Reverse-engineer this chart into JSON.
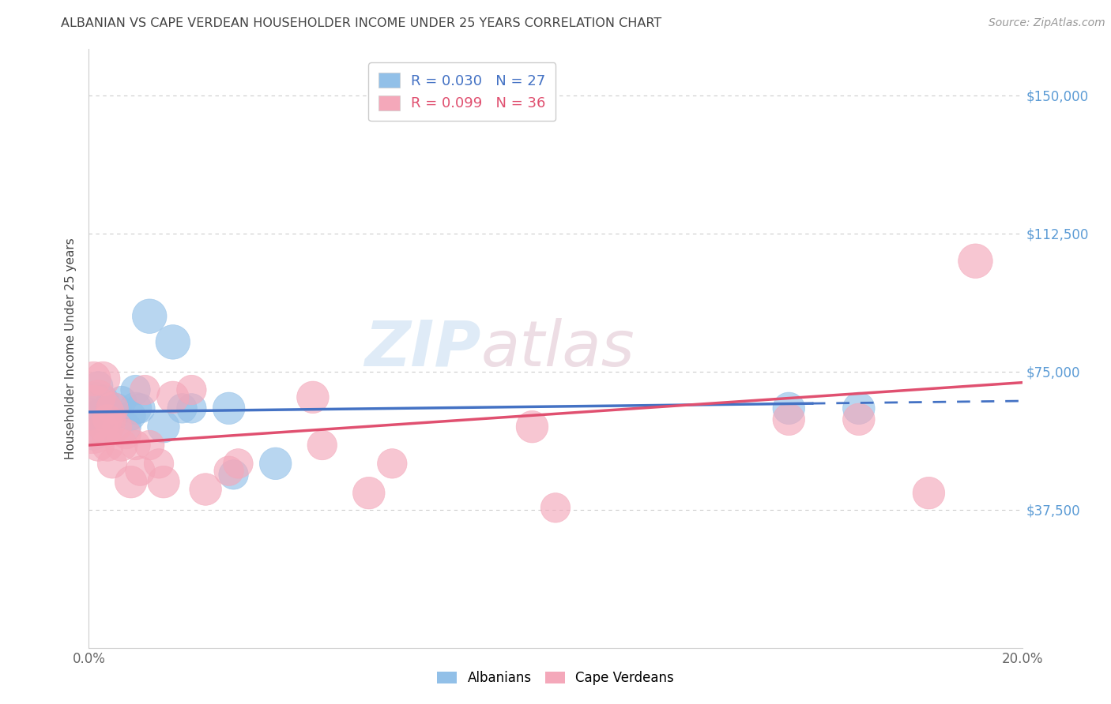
{
  "title": "ALBANIAN VS CAPE VERDEAN HOUSEHOLDER INCOME UNDER 25 YEARS CORRELATION CHART",
  "source": "Source: ZipAtlas.com",
  "ylabel": "Householder Income Under 25 years",
  "watermark_zip": "ZIP",
  "watermark_atlas": "atlas",
  "xlim": [
    0.0,
    0.2
  ],
  "ylim": [
    0,
    162500
  ],
  "yticks": [
    0,
    37500,
    75000,
    112500,
    150000
  ],
  "ytick_labels": [
    "",
    "$37,500",
    "$75,000",
    "$112,500",
    "$150,000"
  ],
  "xticks": [
    0.0,
    0.025,
    0.05,
    0.075,
    0.1,
    0.125,
    0.15,
    0.175,
    0.2
  ],
  "xtick_labels": [
    "0.0%",
    "",
    "",
    "",
    "",
    "",
    "",
    "",
    "20.0%"
  ],
  "albanian_R": 0.03,
  "albanian_N": 27,
  "capeverdean_R": 0.099,
  "capeverdean_N": 36,
  "albanian_color": "#92c0e8",
  "capeverdean_color": "#f4a8ba",
  "albanian_line_color": "#4472c4",
  "capeverdean_line_color": "#e05070",
  "albanian_x": [
    0.0008,
    0.001,
    0.0015,
    0.002,
    0.002,
    0.003,
    0.003,
    0.004,
    0.004,
    0.005,
    0.006,
    0.007,
    0.008,
    0.009,
    0.01,
    0.01,
    0.011,
    0.013,
    0.016,
    0.018,
    0.02,
    0.022,
    0.03,
    0.031,
    0.04,
    0.15,
    0.165
  ],
  "albanian_y": [
    63000,
    58000,
    68000,
    63000,
    71000,
    60000,
    67000,
    65000,
    60000,
    63000,
    65000,
    67000,
    60000,
    63000,
    65000,
    70000,
    65000,
    90000,
    60000,
    83000,
    65000,
    65000,
    65000,
    47000,
    50000,
    65000,
    65000
  ],
  "capeverdean_x": [
    0.0005,
    0.001,
    0.001,
    0.002,
    0.002,
    0.003,
    0.003,
    0.004,
    0.004,
    0.005,
    0.005,
    0.006,
    0.007,
    0.008,
    0.009,
    0.01,
    0.011,
    0.012,
    0.013,
    0.015,
    0.016,
    0.018,
    0.022,
    0.025,
    0.03,
    0.032,
    0.048,
    0.05,
    0.06,
    0.065,
    0.095,
    0.1,
    0.15,
    0.165,
    0.18,
    0.19
  ],
  "capeverdean_y": [
    62000,
    73000,
    60000,
    68000,
    55000,
    73000,
    60000,
    55000,
    62000,
    65000,
    50000,
    60000,
    55000,
    58000,
    45000,
    55000,
    48000,
    70000,
    55000,
    50000,
    45000,
    68000,
    70000,
    43000,
    48000,
    50000,
    68000,
    55000,
    42000,
    50000,
    60000,
    38000,
    62000,
    62000,
    42000,
    105000
  ],
  "albanian_sizes": [
    22,
    20,
    18,
    20,
    18,
    18,
    20,
    18,
    18,
    20,
    18,
    18,
    18,
    18,
    20,
    18,
    18,
    22,
    20,
    22,
    18,
    18,
    20,
    18,
    20,
    20,
    20
  ],
  "capeverdean_sizes": [
    55,
    22,
    20,
    22,
    20,
    22,
    18,
    20,
    18,
    20,
    18,
    18,
    20,
    18,
    20,
    18,
    18,
    18,
    18,
    18,
    20,
    20,
    18,
    20,
    18,
    18,
    20,
    18,
    20,
    18,
    20,
    18,
    20,
    20,
    20,
    22
  ],
  "background_color": "#ffffff",
  "grid_color": "#cccccc",
  "title_color": "#444444",
  "axis_label_color": "#444444",
  "tick_color": "#5b9bd5",
  "alb_line_solid_end": 0.155,
  "cv_line_intercept": 55000,
  "cv_line_slope": 85000,
  "alb_line_intercept": 64000,
  "alb_line_slope": 15000
}
